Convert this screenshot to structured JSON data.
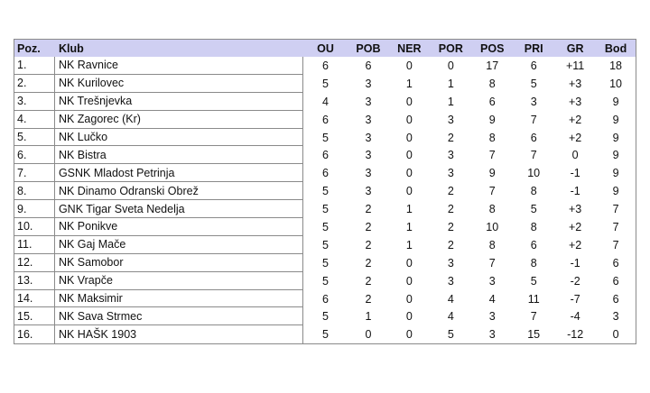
{
  "headers": [
    "Poz.",
    "Klub",
    "OU",
    "POB",
    "NER",
    "POR",
    "POS",
    "PRI",
    "GR",
    "Bod"
  ],
  "header_color": "#cfcff2",
  "rows": [
    [
      "1.",
      "NK Ravnice",
      "6",
      "6",
      "0",
      "0",
      "17",
      "6",
      "+11",
      "18"
    ],
    [
      "2.",
      "NK Kurilovec",
      "5",
      "3",
      "1",
      "1",
      "8",
      "5",
      "+3",
      "10"
    ],
    [
      "3.",
      "NK Trešnjevka",
      "4",
      "3",
      "0",
      "1",
      "6",
      "3",
      "+3",
      "9"
    ],
    [
      "4.",
      "NK Zagorec (Kr)",
      "6",
      "3",
      "0",
      "3",
      "9",
      "7",
      "+2",
      "9"
    ],
    [
      "5.",
      "NK Lučko",
      "5",
      "3",
      "0",
      "2",
      "8",
      "6",
      "+2",
      "9"
    ],
    [
      "6.",
      "NK Bistra",
      "6",
      "3",
      "0",
      "3",
      "7",
      "7",
      "0",
      "9"
    ],
    [
      "7.",
      "GSNK Mladost Petrinja",
      "6",
      "3",
      "0",
      "3",
      "9",
      "10",
      "-1",
      "9"
    ],
    [
      "8.",
      "NK Dinamo Odranski Obrež",
      "5",
      "3",
      "0",
      "2",
      "7",
      "8",
      "-1",
      "9"
    ],
    [
      "9.",
      "GNK Tigar Sveta Nedelja",
      "5",
      "2",
      "1",
      "2",
      "8",
      "5",
      "+3",
      "7"
    ],
    [
      "10.",
      "NK Ponikve",
      "5",
      "2",
      "1",
      "2",
      "10",
      "8",
      "+2",
      "7"
    ],
    [
      "11.",
      "NK Gaj Mače",
      "5",
      "2",
      "1",
      "2",
      "8",
      "6",
      "+2",
      "7"
    ],
    [
      "12.",
      "NK Samobor",
      "5",
      "2",
      "0",
      "3",
      "7",
      "8",
      "-1",
      "6"
    ],
    [
      "13.",
      "NK Vrapče",
      "5",
      "2",
      "0",
      "3",
      "3",
      "5",
      "-2",
      "6"
    ],
    [
      "14.",
      "NK Maksimir",
      "6",
      "2",
      "0",
      "4",
      "4",
      "11",
      "-7",
      "6"
    ],
    [
      "15.",
      "NK Sava Strmec",
      "5",
      "1",
      "0",
      "4",
      "3",
      "7",
      "-4",
      "3"
    ],
    [
      "16.",
      "NK HAŠK 1903",
      "5",
      "0",
      "0",
      "5",
      "3",
      "15",
      "-12",
      "0"
    ]
  ]
}
